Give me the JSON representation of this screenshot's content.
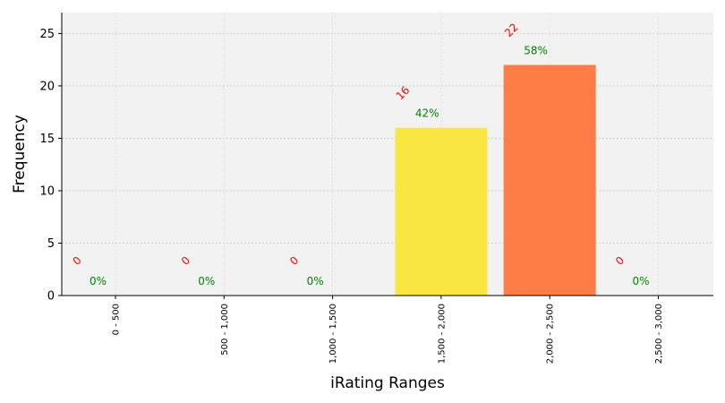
{
  "chart_data": {
    "type": "bar",
    "categories": [
      "0 - 500",
      "500 - 1,000",
      "1,000 - 1,500",
      "1,500 - 2,000",
      "2,000 - 2,500",
      "2,500 - 3,000"
    ],
    "values": [
      0,
      0,
      0,
      16,
      22,
      0
    ],
    "count_labels": [
      "0",
      "0",
      "0",
      "16",
      "22",
      "0"
    ],
    "percent_labels": [
      "0%",
      "0%",
      "0%",
      "42%",
      "58%",
      "0%"
    ],
    "bar_colors": [
      "#9b9b9b",
      "#9b9b9b",
      "#9b9b9b",
      "#fae643",
      "#fe7c46",
      "#9b9b9b"
    ],
    "xlabel": "iRating Ranges",
    "ylabel": "Frequency",
    "ylim": [
      0,
      27
    ],
    "yticks": [
      0,
      5,
      10,
      15,
      20,
      25
    ],
    "grid": true,
    "colors": {
      "plot_background": "#f2f2f2",
      "count_label": "#ff0000",
      "percent_label": "#008000"
    }
  }
}
